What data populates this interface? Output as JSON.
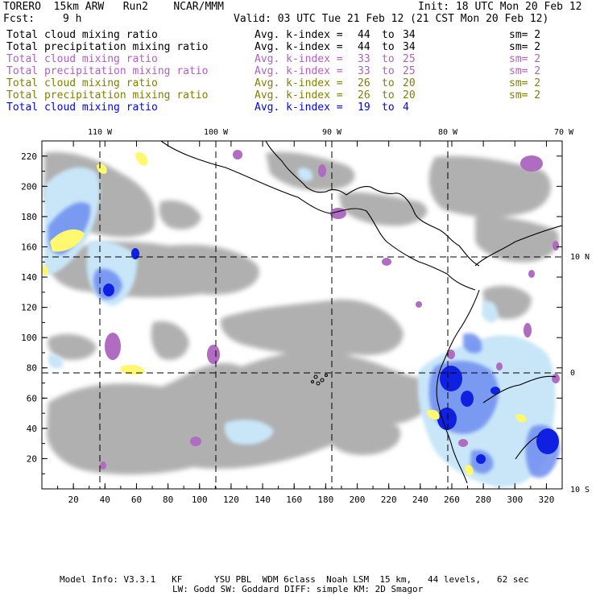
{
  "header": {
    "model": "TORERO  15km ARW   Run2    NCAR/MMM",
    "init": "Init: 18 UTC Mon 20 Feb 12",
    "fcst_label": "Fcst:",
    "fcst_value": "9 h",
    "valid": "Valid: 03 UTC Tue 21 Feb 12 (21 CST Mon 20 Feb 12)"
  },
  "fields": [
    {
      "name": "Total cloud mixing ratio",
      "avg": "Avg. k-index =",
      "from": "44",
      "to_word": "to",
      "to": "34",
      "sm": "sm= 2",
      "color": "#000000"
    },
    {
      "name": "Total precipitation mixing ratio",
      "avg": "Avg. k-index =",
      "from": "44",
      "to_word": "to",
      "to": "34",
      "sm": "sm= 2",
      "color": "#000000"
    },
    {
      "name": "Total cloud mixing ratio",
      "avg": "Avg. k-index =",
      "from": "33",
      "to_word": "to",
      "to": "25",
      "sm": "sm= 2",
      "color": "#b060c0"
    },
    {
      "name": "Total precipitation mixing ratio",
      "avg": "Avg. k-index =",
      "from": "33",
      "to_word": "to",
      "to": "25",
      "sm": "sm= 2",
      "color": "#b060c0"
    },
    {
      "name": "Total cloud mixing ratio",
      "avg": "Avg. k-index =",
      "from": "26",
      "to_word": "to",
      "to": "20",
      "sm": "sm= 2",
      "color": "#808000"
    },
    {
      "name": "Total precipitation mixing ratio",
      "avg": "Avg. k-index =",
      "from": "26",
      "to_word": "to",
      "to": "20",
      "sm": "sm= 2",
      "color": "#808000"
    },
    {
      "name": "Total cloud mixing ratio",
      "avg": "Avg. k-index =",
      "from": "19",
      "to_word": "to",
      "to": "4",
      "sm": "",
      "color": "#0000ff"
    }
  ],
  "map": {
    "lon_labels": [
      "110 W",
      "100 W",
      "90 W",
      "80 W",
      "70 W"
    ],
    "lat_labels": [
      "10 N",
      "0",
      "10 S"
    ],
    "x_ticks": [
      "20",
      "40",
      "60",
      "80",
      "100",
      "120",
      "140",
      "160",
      "180",
      "200",
      "220",
      "240",
      "260",
      "280",
      "300",
      "320"
    ],
    "y_ticks": [
      "20",
      "40",
      "60",
      "80",
      "100",
      "120",
      "140",
      "160",
      "180",
      "200",
      "220"
    ],
    "colors": {
      "cloud_gray": "#a8a8a8",
      "light_blue": "#c8e6f8",
      "mid_blue": "#6d8cf0",
      "deep_blue": "#1020e0",
      "purple": "#b06cc0",
      "yellow": "#fff870",
      "coast": "#000000"
    }
  },
  "footer": {
    "line1": "Model Info: V3.3.1   KF      YSU PBL  WDM 6class  Noah LSM  15 km,   44 levels,   62 sec",
    "line2": "LW: Godd SW: Goddard DIFF: simple KM: 2D Smagor"
  }
}
